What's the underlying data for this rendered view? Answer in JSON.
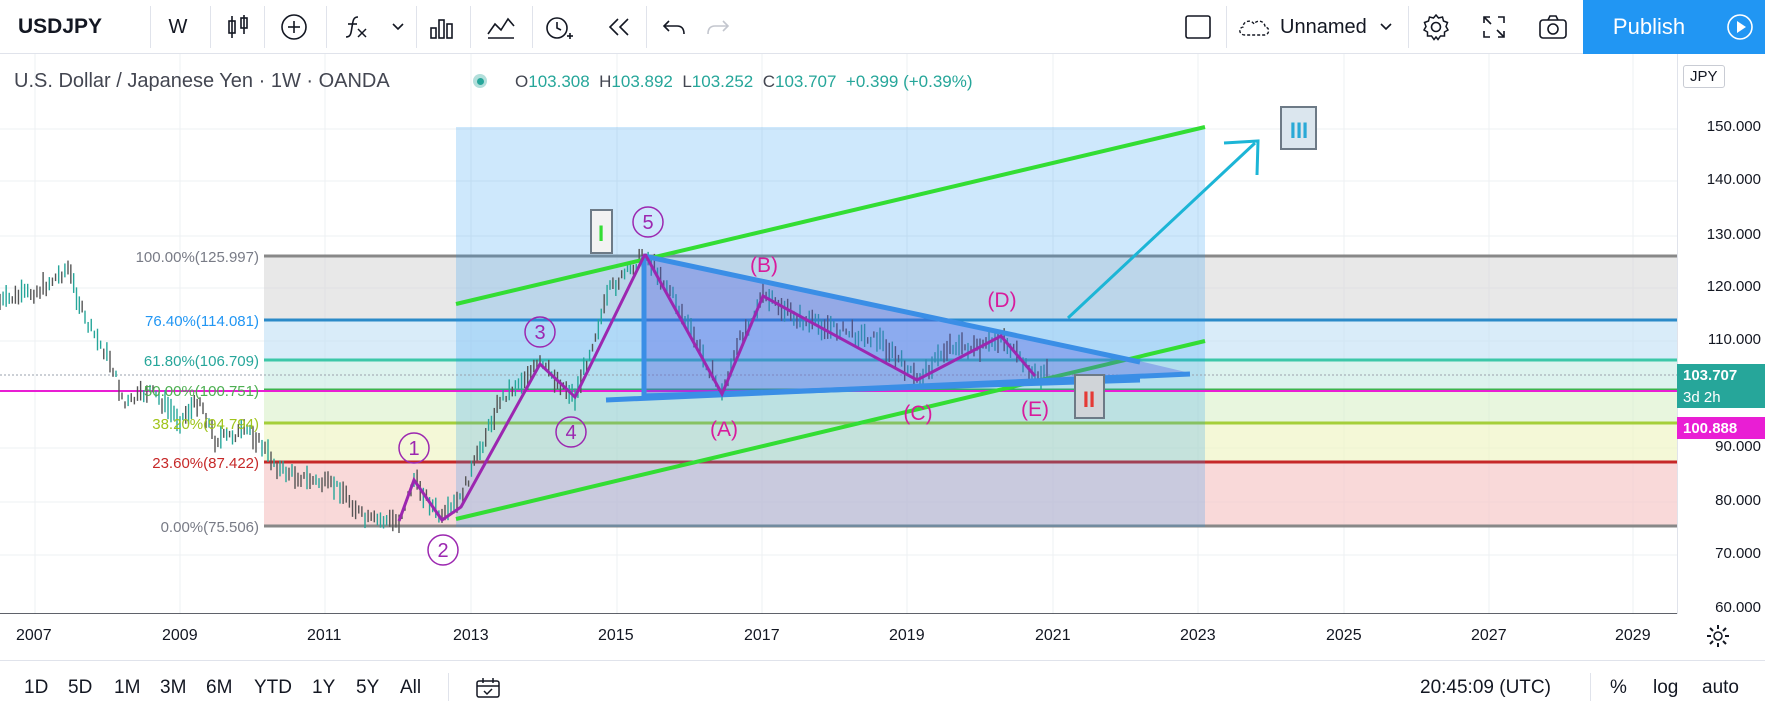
{
  "toolbar": {
    "symbol": "USDJPY",
    "interval": "W",
    "layout_name": "Unnamed",
    "publish_label": "Publish",
    "icons": [
      "candles-icon",
      "plus-circle-icon",
      "fx-icon",
      "chevron-down-icon",
      "bars-icon",
      "compare-icon",
      "alert-icon",
      "replay-icon",
      "undo-icon",
      "redo-icon",
      "square-icon",
      "cloud-icon",
      "gear-icon",
      "fullscreen-icon",
      "camera-icon",
      "play-icon"
    ]
  },
  "legend": {
    "title": "U.S. Dollar / Japanese Yen · 1W · OANDA",
    "o_label": "O",
    "o_value": "103.308",
    "h_label": "H",
    "h_value": "103.892",
    "l_label": "L",
    "l_value": "103.252",
    "c_label": "C",
    "c_value": "103.707",
    "change": "+0.399 (+0.39%)"
  },
  "price_axis": {
    "currency": "JPY",
    "labels": [
      "150.000",
      "140.000",
      "130.000",
      "120.000",
      "110.000",
      "90.000",
      "80.000",
      "70.000",
      "60.000"
    ],
    "last_price": "103.707",
    "countdown": "3d 2h",
    "line_price": "100.888"
  },
  "fib_levels": [
    {
      "label": "100.00%(125.997)",
      "color": "#787b86"
    },
    {
      "label": "76.40%(114.081)",
      "color": "#2196f3"
    },
    {
      "label": "61.80%(106.709)",
      "color": "#26a69a"
    },
    {
      "label": "50.00%(100.751)",
      "color": "#4caf50"
    },
    {
      "label": "38.20%(94.794)",
      "color": "#a0c41a"
    },
    {
      "label": "23.60%(87.422)",
      "color": "#c62828"
    },
    {
      "label": "0.00%(75.506)",
      "color": "#787b86"
    }
  ],
  "wave_labels": {
    "impulse": [
      "1",
      "2",
      "3",
      "4",
      "5"
    ],
    "corrective": [
      "(A)",
      "(B)",
      "(C)",
      "(D)",
      "(E)"
    ],
    "degree": [
      "I",
      "II",
      "III"
    ]
  },
  "time_axis": [
    "2007",
    "2009",
    "2011",
    "2013",
    "2015",
    "2017",
    "2019",
    "2021",
    "2023",
    "2025",
    "2027",
    "2029"
  ],
  "bottom": {
    "ranges": [
      "1D",
      "5D",
      "1M",
      "3M",
      "6M",
      "YTD",
      "1Y",
      "5Y",
      "All"
    ],
    "clock": "20:45:09 (UTC)",
    "percent": "%",
    "log": "log",
    "auto": "auto"
  },
  "colors": {
    "accent": "#2196f3",
    "trend_lines": "#33dd33",
    "waves": "#9c27b0",
    "triangle": "#3a8ee6",
    "arrow": "#1cb5d6",
    "horizontal_line": "#e91ed4"
  }
}
